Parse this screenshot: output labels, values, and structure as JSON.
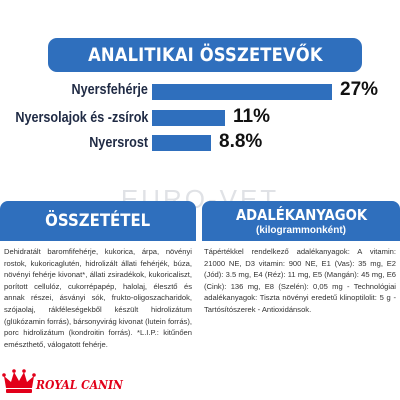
{
  "title": "ANALITIKAI ÖSSZETEVŐK",
  "analytics": [
    {
      "label": "Nyersfehérje",
      "value": "27%",
      "fraction": 1.0
    },
    {
      "label": "Nyersolajok és -zsírok",
      "value": "11%",
      "fraction": 0.407
    },
    {
      "label": "Nyersrost",
      "value": "8.8%",
      "fraction": 0.326
    }
  ],
  "watermark": "EURO-VET",
  "composition": {
    "heading": "ÖSSZETÉTEL",
    "text": "Dehidratált baromfifehérje, kukorica, árpa, növényi rostok, kukoricaglutén, hidrolizált állati fehérjék, búza, növényi fehérje kivonat*, állati zsiradékok, kukoricaliszt, porított cellulóz, cukorrépapép, halolaj, élesztő és annak részei, ásványi sók, frukto-oligoszacharidok, szójaolaj, rákféleségekből készült hidrolizátum (glükózamin forrás), bársonyvirág kivonat (lutein forrás), porc hidrolizátum (kondroitin forrás). *L.I.P.: kitűnően emészthető, válogatott fehérje."
  },
  "additives": {
    "heading": "ADALÉKANYAGOK",
    "subheading": "(kilogrammonként)",
    "text": "Tápértékkel rendelkező adalékanyagok: A vitamin: 21000 NE, D3 vitamin: 900 NE, E1 (Vas): 35 mg, E2 (Jód): 3.5 mg, E4 (Réz): 11 mg, E5 (Mangán): 45 mg, E6 (Cink): 136 mg, E8 (Szelén): 0,05 mg - Technológiai adalékanyagok: Tiszta növényi eredetű klinoptilolit: 5 g - Tartósítószerek - Antioxidánsok."
  },
  "brand": {
    "name": "ROYAL CANIN",
    "color": "#e2001a"
  },
  "colors": {
    "accent": "#2f6fbd"
  }
}
